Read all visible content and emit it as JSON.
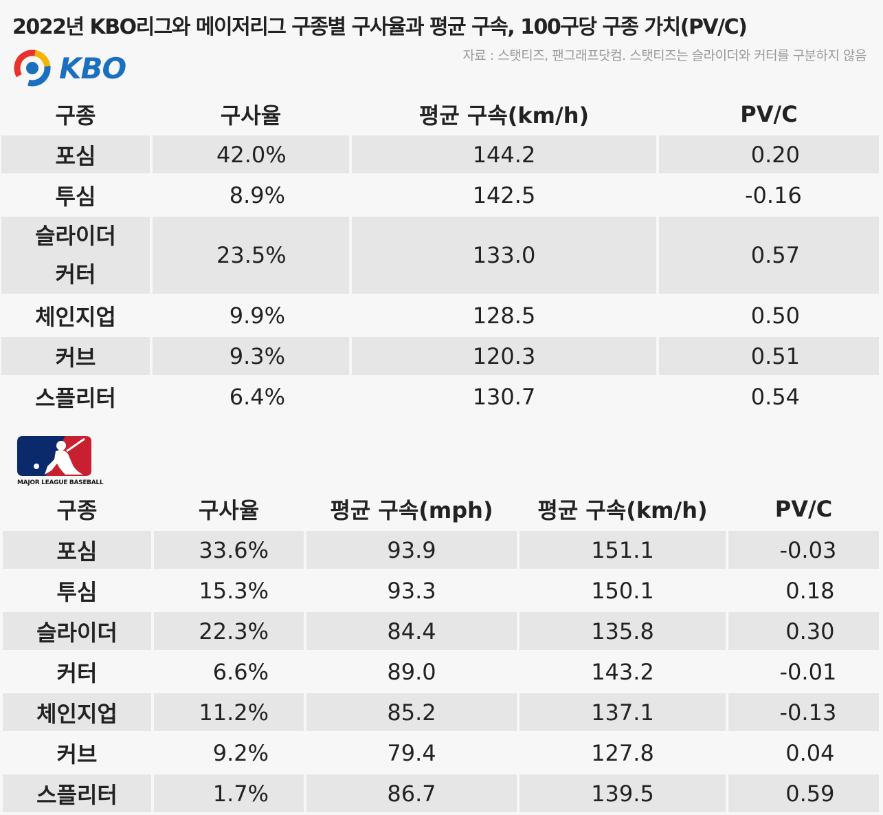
{
  "title": "2022년 KBO리그와 메이저리그 구종별 구사율과 평균 구속, 100구당 구종 가치(PV/C)",
  "source": "자료 : 스탯티즈, 팬그래프닷컴. 스탯티즈는 슬라이더와 커터를 구분하지 않음",
  "kbo": {
    "logo_text": "KBO",
    "headers": [
      "구종",
      "구사율",
      "평균 구속(km/h)",
      "PV/C"
    ],
    "rows": [
      {
        "pitch": "포심",
        "usage": "42.0%",
        "kmh": "144.2",
        "pvc": "0.20"
      },
      {
        "pitch": "투심",
        "usage": "8.9%",
        "kmh": "142.5",
        "pvc": "-0.16"
      },
      {
        "pitch": "슬라이더",
        "pitch2": "커터",
        "usage": "23.5%",
        "kmh": "133.0",
        "pvc": "0.57"
      },
      {
        "pitch": "체인지업",
        "usage": "9.9%",
        "kmh": "128.5",
        "pvc": "0.50"
      },
      {
        "pitch": "커브",
        "usage": "9.3%",
        "kmh": "120.3",
        "pvc": "0.51"
      },
      {
        "pitch": "스플리터",
        "usage": "6.4%",
        "kmh": "130.7",
        "pvc": "0.54"
      }
    ]
  },
  "mlb": {
    "logo_caption": "MAJOR LEAGUE BASEBALL",
    "headers": [
      "구종",
      "구사율",
      "평균 구속(mph)",
      "평균 구속(km/h)",
      "PV/C"
    ],
    "rows": [
      {
        "pitch": "포심",
        "usage": "33.6%",
        "mph": "93.9",
        "kmh": "151.1",
        "pvc": "-0.03"
      },
      {
        "pitch": "투심",
        "usage": "15.3%",
        "mph": "93.3",
        "kmh": "150.1",
        "pvc": "0.18"
      },
      {
        "pitch": "슬라이더",
        "usage": "22.3%",
        "mph": "84.4",
        "kmh": "135.8",
        "pvc": "0.30"
      },
      {
        "pitch": "커터",
        "usage": "6.6%",
        "mph": "89.0",
        "kmh": "143.2",
        "pvc": "-0.01"
      },
      {
        "pitch": "체인지업",
        "usage": "11.2%",
        "mph": "85.2",
        "kmh": "137.1",
        "pvc": "-0.13"
      },
      {
        "pitch": "커브",
        "usage": "9.2%",
        "mph": "79.4",
        "kmh": "127.8",
        "pvc": "0.04"
      },
      {
        "pitch": "스플리터",
        "usage": "1.7%",
        "mph": "86.7",
        "kmh": "139.5",
        "pvc": "0.59"
      }
    ]
  },
  "colors": {
    "shade": "#e6e6e6",
    "kbo_blue": "#1b6fbf",
    "kbo_red": "#e8322c",
    "kbo_yellow": "#f5b400",
    "mlb_navy": "#0a2a6b",
    "mlb_red": "#c8202f"
  }
}
